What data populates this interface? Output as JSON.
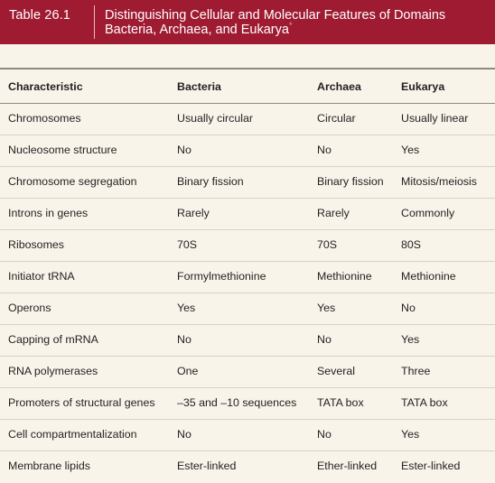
{
  "banner": {
    "table_number": "Table 26.1",
    "title_line1": "Distinguishing Cellular and Molecular Features of Domains",
    "title_line2": "Bacteria, Archaea, and Eukarya",
    "title_footnote_mark": "*"
  },
  "table": {
    "headers": [
      "Characteristic",
      "Bacteria",
      "Archaea",
      "Eukarya"
    ],
    "rows": [
      [
        "Chromosomes",
        "Usually circular",
        "Circular",
        "Usually linear"
      ],
      [
        "Nucleosome structure",
        "No",
        "No",
        "Yes"
      ],
      [
        "Chromosome segregation",
        "Binary fission",
        "Binary fission",
        "Mitosis/meiosis"
      ],
      [
        "Introns in genes",
        "Rarely",
        "Rarely",
        "Commonly"
      ],
      [
        "Ribosomes",
        "70S",
        "70S",
        "80S"
      ],
      [
        "Initiator tRNA",
        "Formylmethionine",
        "Methionine",
        "Methionine"
      ],
      [
        "Operons",
        "Yes",
        "Yes",
        "No"
      ],
      [
        "Capping of mRNA",
        "No",
        "No",
        "Yes"
      ],
      [
        "RNA polymerases",
        "One",
        "Several",
        "Three"
      ],
      [
        "Promoters of structural genes",
        "–35 and –10 sequences",
        "TATA box",
        "TATA box"
      ],
      [
        "Cell compartmentalization",
        "No",
        "No",
        "Yes"
      ],
      [
        "Membrane lipids",
        "Ester-linked",
        "Ether-linked",
        "Ester-linked"
      ]
    ]
  },
  "colors": {
    "banner": "#9e1b32",
    "background": "#f9f4ea",
    "footnote_mark": "#f29ab0"
  }
}
